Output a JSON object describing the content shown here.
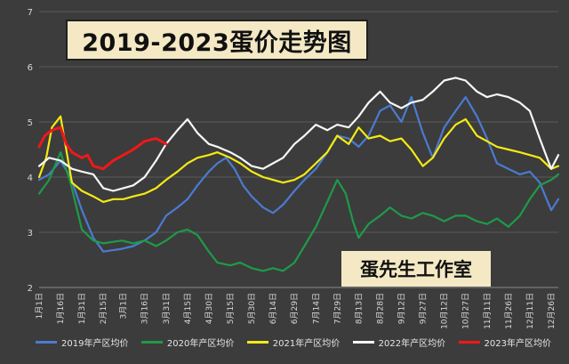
{
  "title": "2019-2023蛋价走势图",
  "watermark": "蛋先生工作室",
  "chart_data": {
    "type": "line",
    "ylim": [
      2,
      7
    ],
    "yticks": [
      "2",
      "3",
      "4",
      "5",
      "6",
      "7"
    ],
    "xticks": [
      "1月1日",
      "1月16日",
      "1月31日",
      "2月15日",
      "3月1日",
      "3月16日",
      "3月31日",
      "4月15日",
      "4月30日",
      "5月15日",
      "5月30日",
      "6月14日",
      "6月29日",
      "7月14日",
      "7月29日",
      "8月13日",
      "8月28日",
      "9月12日",
      "9月27日",
      "10月12日",
      "10月27日",
      "11月11日",
      "11月26日",
      "12月11日",
      "12月26日"
    ],
    "x_start_date": "01-01",
    "x_end_date": "12-31",
    "grid": true,
    "legend_position": "bottom",
    "series": [
      {
        "name": "2019年产区均价",
        "color": "#4a7bd0",
        "points": [
          [
            "01-01",
            3.95
          ],
          [
            "01-08",
            4.05
          ],
          [
            "01-16",
            4.3
          ],
          [
            "01-23",
            4.0
          ],
          [
            "01-31",
            3.4
          ],
          [
            "02-08",
            2.9
          ],
          [
            "02-15",
            2.65
          ],
          [
            "02-28",
            2.7
          ],
          [
            "03-08",
            2.75
          ],
          [
            "03-16",
            2.85
          ],
          [
            "03-24",
            3.0
          ],
          [
            "03-31",
            3.3
          ],
          [
            "04-08",
            3.45
          ],
          [
            "04-15",
            3.6
          ],
          [
            "04-22",
            3.85
          ],
          [
            "04-30",
            4.1
          ],
          [
            "05-06",
            4.25
          ],
          [
            "05-12",
            4.35
          ],
          [
            "05-18",
            4.15
          ],
          [
            "05-24",
            3.85
          ],
          [
            "05-30",
            3.65
          ],
          [
            "06-07",
            3.45
          ],
          [
            "06-14",
            3.35
          ],
          [
            "06-21",
            3.5
          ],
          [
            "06-29",
            3.75
          ],
          [
            "07-06",
            3.95
          ],
          [
            "07-14",
            4.15
          ],
          [
            "07-22",
            4.45
          ],
          [
            "07-29",
            4.75
          ],
          [
            "08-06",
            4.7
          ],
          [
            "08-13",
            4.55
          ],
          [
            "08-20",
            4.75
          ],
          [
            "08-28",
            5.2
          ],
          [
            "09-04",
            5.3
          ],
          [
            "09-12",
            5.0
          ],
          [
            "09-19",
            5.45
          ],
          [
            "09-27",
            4.8
          ],
          [
            "10-04",
            4.35
          ],
          [
            "10-12",
            4.9
          ],
          [
            "10-20",
            5.2
          ],
          [
            "10-27",
            5.45
          ],
          [
            "11-04",
            5.1
          ],
          [
            "11-11",
            4.7
          ],
          [
            "11-18",
            4.25
          ],
          [
            "11-26",
            4.15
          ],
          [
            "12-04",
            4.05
          ],
          [
            "12-11",
            4.1
          ],
          [
            "12-18",
            3.9
          ],
          [
            "12-26",
            3.4
          ],
          [
            "12-31",
            3.6
          ]
        ]
      },
      {
        "name": "2020年产区均价",
        "color": "#1f9a48",
        "points": [
          [
            "01-01",
            3.7
          ],
          [
            "01-08",
            3.95
          ],
          [
            "01-16",
            4.45
          ],
          [
            "01-23",
            3.9
          ],
          [
            "01-31",
            3.05
          ],
          [
            "02-08",
            2.85
          ],
          [
            "02-15",
            2.8
          ],
          [
            "02-28",
            2.85
          ],
          [
            "03-08",
            2.8
          ],
          [
            "03-16",
            2.85
          ],
          [
            "03-24",
            2.75
          ],
          [
            "03-31",
            2.85
          ],
          [
            "04-08",
            3.0
          ],
          [
            "04-15",
            3.05
          ],
          [
            "04-22",
            2.95
          ],
          [
            "04-30",
            2.65
          ],
          [
            "05-06",
            2.45
          ],
          [
            "05-15",
            2.4
          ],
          [
            "05-22",
            2.45
          ],
          [
            "05-30",
            2.35
          ],
          [
            "06-07",
            2.3
          ],
          [
            "06-14",
            2.35
          ],
          [
            "06-21",
            2.3
          ],
          [
            "06-29",
            2.45
          ],
          [
            "07-06",
            2.75
          ],
          [
            "07-14",
            3.1
          ],
          [
            "07-22",
            3.55
          ],
          [
            "07-29",
            3.95
          ],
          [
            "08-04",
            3.7
          ],
          [
            "08-09",
            3.2
          ],
          [
            "08-13",
            2.9
          ],
          [
            "08-20",
            3.15
          ],
          [
            "08-28",
            3.3
          ],
          [
            "09-04",
            3.45
          ],
          [
            "09-12",
            3.3
          ],
          [
            "09-19",
            3.25
          ],
          [
            "09-27",
            3.35
          ],
          [
            "10-04",
            3.3
          ],
          [
            "10-12",
            3.2
          ],
          [
            "10-20",
            3.3
          ],
          [
            "10-27",
            3.3
          ],
          [
            "11-04",
            3.2
          ],
          [
            "11-11",
            3.15
          ],
          [
            "11-18",
            3.25
          ],
          [
            "11-26",
            3.1
          ],
          [
            "12-04",
            3.3
          ],
          [
            "12-11",
            3.6
          ],
          [
            "12-18",
            3.85
          ],
          [
            "12-26",
            3.95
          ],
          [
            "12-31",
            4.05
          ]
        ]
      },
      {
        "name": "2021年产区均价",
        "color": "#f4ea14",
        "points": [
          [
            "01-01",
            4.0
          ],
          [
            "01-06",
            4.35
          ],
          [
            "01-10",
            4.9
          ],
          [
            "01-16",
            5.1
          ],
          [
            "01-20",
            4.5
          ],
          [
            "01-24",
            3.9
          ],
          [
            "01-31",
            3.75
          ],
          [
            "02-08",
            3.65
          ],
          [
            "02-15",
            3.55
          ],
          [
            "02-22",
            3.6
          ],
          [
            "03-01",
            3.6
          ],
          [
            "03-08",
            3.65
          ],
          [
            "03-16",
            3.7
          ],
          [
            "03-24",
            3.8
          ],
          [
            "03-31",
            3.95
          ],
          [
            "04-08",
            4.1
          ],
          [
            "04-15",
            4.25
          ],
          [
            "04-22",
            4.35
          ],
          [
            "04-30",
            4.4
          ],
          [
            "05-06",
            4.45
          ],
          [
            "05-15",
            4.35
          ],
          [
            "05-22",
            4.25
          ],
          [
            "05-30",
            4.1
          ],
          [
            "06-07",
            4.0
          ],
          [
            "06-14",
            3.95
          ],
          [
            "06-21",
            3.9
          ],
          [
            "06-29",
            3.95
          ],
          [
            "07-06",
            4.05
          ],
          [
            "07-14",
            4.25
          ],
          [
            "07-22",
            4.45
          ],
          [
            "07-29",
            4.75
          ],
          [
            "08-06",
            4.6
          ],
          [
            "08-13",
            4.9
          ],
          [
            "08-20",
            4.7
          ],
          [
            "08-28",
            4.75
          ],
          [
            "09-04",
            4.65
          ],
          [
            "09-12",
            4.7
          ],
          [
            "09-19",
            4.5
          ],
          [
            "09-27",
            4.2
          ],
          [
            "10-04",
            4.35
          ],
          [
            "10-12",
            4.7
          ],
          [
            "10-20",
            4.95
          ],
          [
            "10-27",
            5.05
          ],
          [
            "11-04",
            4.75
          ],
          [
            "11-11",
            4.65
          ],
          [
            "11-18",
            4.55
          ],
          [
            "11-26",
            4.5
          ],
          [
            "12-04",
            4.45
          ],
          [
            "12-11",
            4.4
          ],
          [
            "12-18",
            4.35
          ],
          [
            "12-26",
            4.15
          ],
          [
            "12-31",
            4.2
          ]
        ]
      },
      {
        "name": "2022年产区均价",
        "color": "#f7f7f7",
        "points": [
          [
            "01-01",
            4.2
          ],
          [
            "01-08",
            4.35
          ],
          [
            "01-16",
            4.3
          ],
          [
            "01-24",
            4.15
          ],
          [
            "01-31",
            4.1
          ],
          [
            "02-08",
            4.05
          ],
          [
            "02-15",
            3.8
          ],
          [
            "02-22",
            3.75
          ],
          [
            "03-01",
            3.8
          ],
          [
            "03-08",
            3.85
          ],
          [
            "03-16",
            4.0
          ],
          [
            "03-24",
            4.3
          ],
          [
            "03-31",
            4.6
          ],
          [
            "04-08",
            4.85
          ],
          [
            "04-15",
            5.05
          ],
          [
            "04-22",
            4.8
          ],
          [
            "04-30",
            4.6
          ],
          [
            "05-06",
            4.55
          ],
          [
            "05-15",
            4.45
          ],
          [
            "05-22",
            4.35
          ],
          [
            "05-30",
            4.2
          ],
          [
            "06-07",
            4.15
          ],
          [
            "06-14",
            4.25
          ],
          [
            "06-21",
            4.35
          ],
          [
            "06-29",
            4.6
          ],
          [
            "07-06",
            4.75
          ],
          [
            "07-14",
            4.95
          ],
          [
            "07-22",
            4.85
          ],
          [
            "07-29",
            4.95
          ],
          [
            "08-06",
            4.9
          ],
          [
            "08-13",
            5.1
          ],
          [
            "08-20",
            5.35
          ],
          [
            "08-28",
            5.55
          ],
          [
            "09-04",
            5.35
          ],
          [
            "09-12",
            5.25
          ],
          [
            "09-19",
            5.35
          ],
          [
            "09-27",
            5.4
          ],
          [
            "10-04",
            5.55
          ],
          [
            "10-12",
            5.75
          ],
          [
            "10-20",
            5.8
          ],
          [
            "10-27",
            5.75
          ],
          [
            "11-04",
            5.55
          ],
          [
            "11-11",
            5.45
          ],
          [
            "11-18",
            5.5
          ],
          [
            "11-26",
            5.45
          ],
          [
            "12-04",
            5.35
          ],
          [
            "12-11",
            5.2
          ],
          [
            "12-18",
            4.7
          ],
          [
            "12-26",
            4.15
          ],
          [
            "12-31",
            4.4
          ]
        ]
      },
      {
        "name": "2023年产区均价",
        "color": "#f01818",
        "points": [
          [
            "01-01",
            4.55
          ],
          [
            "01-05",
            4.75
          ],
          [
            "01-10",
            4.85
          ],
          [
            "01-16",
            4.9
          ],
          [
            "01-20",
            4.6
          ],
          [
            "01-24",
            4.45
          ],
          [
            "01-31",
            4.35
          ],
          [
            "02-04",
            4.4
          ],
          [
            "02-08",
            4.2
          ],
          [
            "02-15",
            4.15
          ],
          [
            "02-22",
            4.3
          ],
          [
            "03-01",
            4.4
          ],
          [
            "03-08",
            4.5
          ],
          [
            "03-16",
            4.65
          ],
          [
            "03-24",
            4.7
          ],
          [
            "03-31",
            4.6
          ]
        ]
      }
    ]
  }
}
